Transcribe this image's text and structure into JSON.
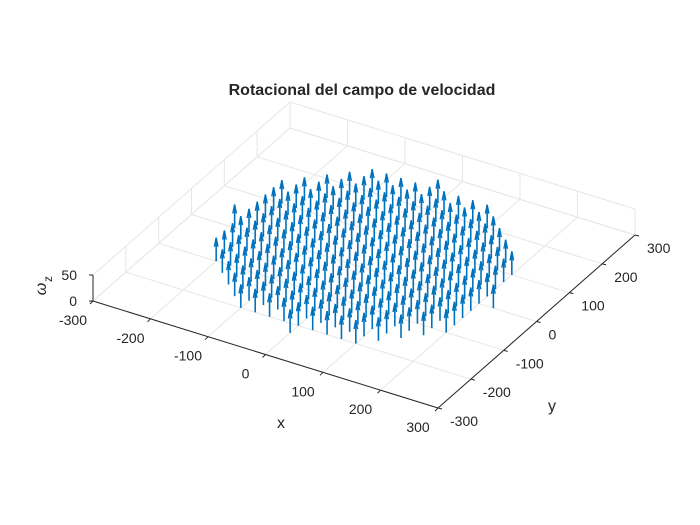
{
  "chart_data": {
    "type": "quiver3",
    "title": "Rotacional del campo de velocidad",
    "xlabel": "x",
    "ylabel": "y",
    "zlabel": "ω",
    "zlabel_sub": "z",
    "xlim": [
      -300,
      300
    ],
    "ylim": [
      -300,
      300
    ],
    "zlim": [
      0,
      50
    ],
    "xticks": [
      -300,
      -200,
      -100,
      0,
      100,
      200,
      300
    ],
    "yticks": [
      -300,
      -200,
      -100,
      0,
      100,
      200,
      300
    ],
    "zticks": [
      0,
      50
    ],
    "grid": true,
    "series": [
      {
        "color": "#0072BD",
        "grid_spacing": 25,
        "domain": "x^2 + y^2 <= 225^2",
        "component": "w_z",
        "arrow_length": 45
      }
    ]
  },
  "colors": {
    "series": "#0072BD",
    "grid": "#e6e6e6",
    "axis": "#262626"
  }
}
